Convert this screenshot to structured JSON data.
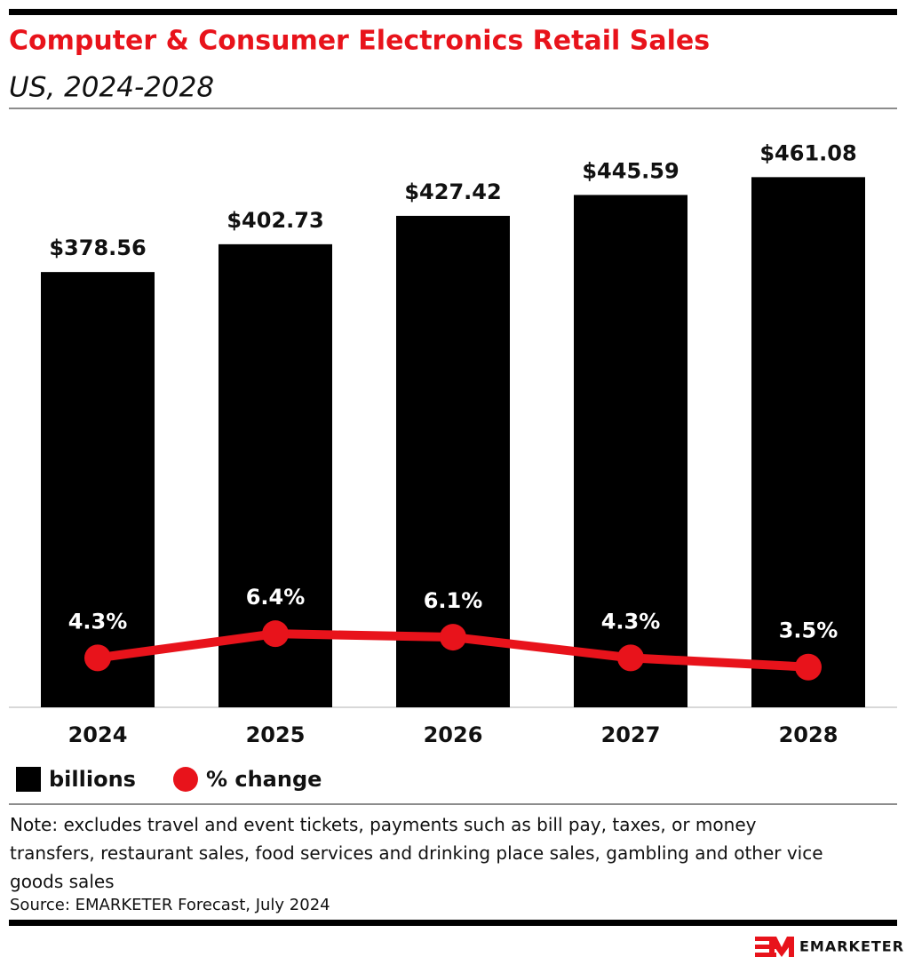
{
  "chart_data": {
    "type": "bar",
    "title": "Computer & Consumer Electronics Retail Sales",
    "subtitle": "US, 2024-2028",
    "categories": [
      "2024",
      "2025",
      "2026",
      "2027",
      "2028"
    ],
    "series": [
      {
        "name": "billions",
        "type": "bar",
        "color": "#000000",
        "values": [
          378.56,
          402.73,
          427.42,
          445.59,
          461.08
        ],
        "value_labels": [
          "$378.56",
          "$402.73",
          "$427.42",
          "$445.59",
          "$461.08"
        ]
      },
      {
        "name": "% change",
        "type": "line",
        "axis": "y2",
        "color": "#e8131b",
        "values": [
          4.3,
          6.4,
          6.1,
          4.3,
          3.5
        ],
        "value_labels": [
          "4.3%",
          "6.4%",
          "6.1%",
          "4.3%",
          "3.5%"
        ]
      }
    ],
    "ylim": [
      0,
      500
    ],
    "y2lim": [
      0,
      50
    ],
    "note": "Note: excludes travel and event tickets, payments such as bill pay, taxes, or money transfers, restaurant sales, food services and drinking place sales, gambling and other vice goods sales",
    "source": "Source: EMARKETER Forecast, July 2024",
    "brand": "EMARKETER"
  }
}
